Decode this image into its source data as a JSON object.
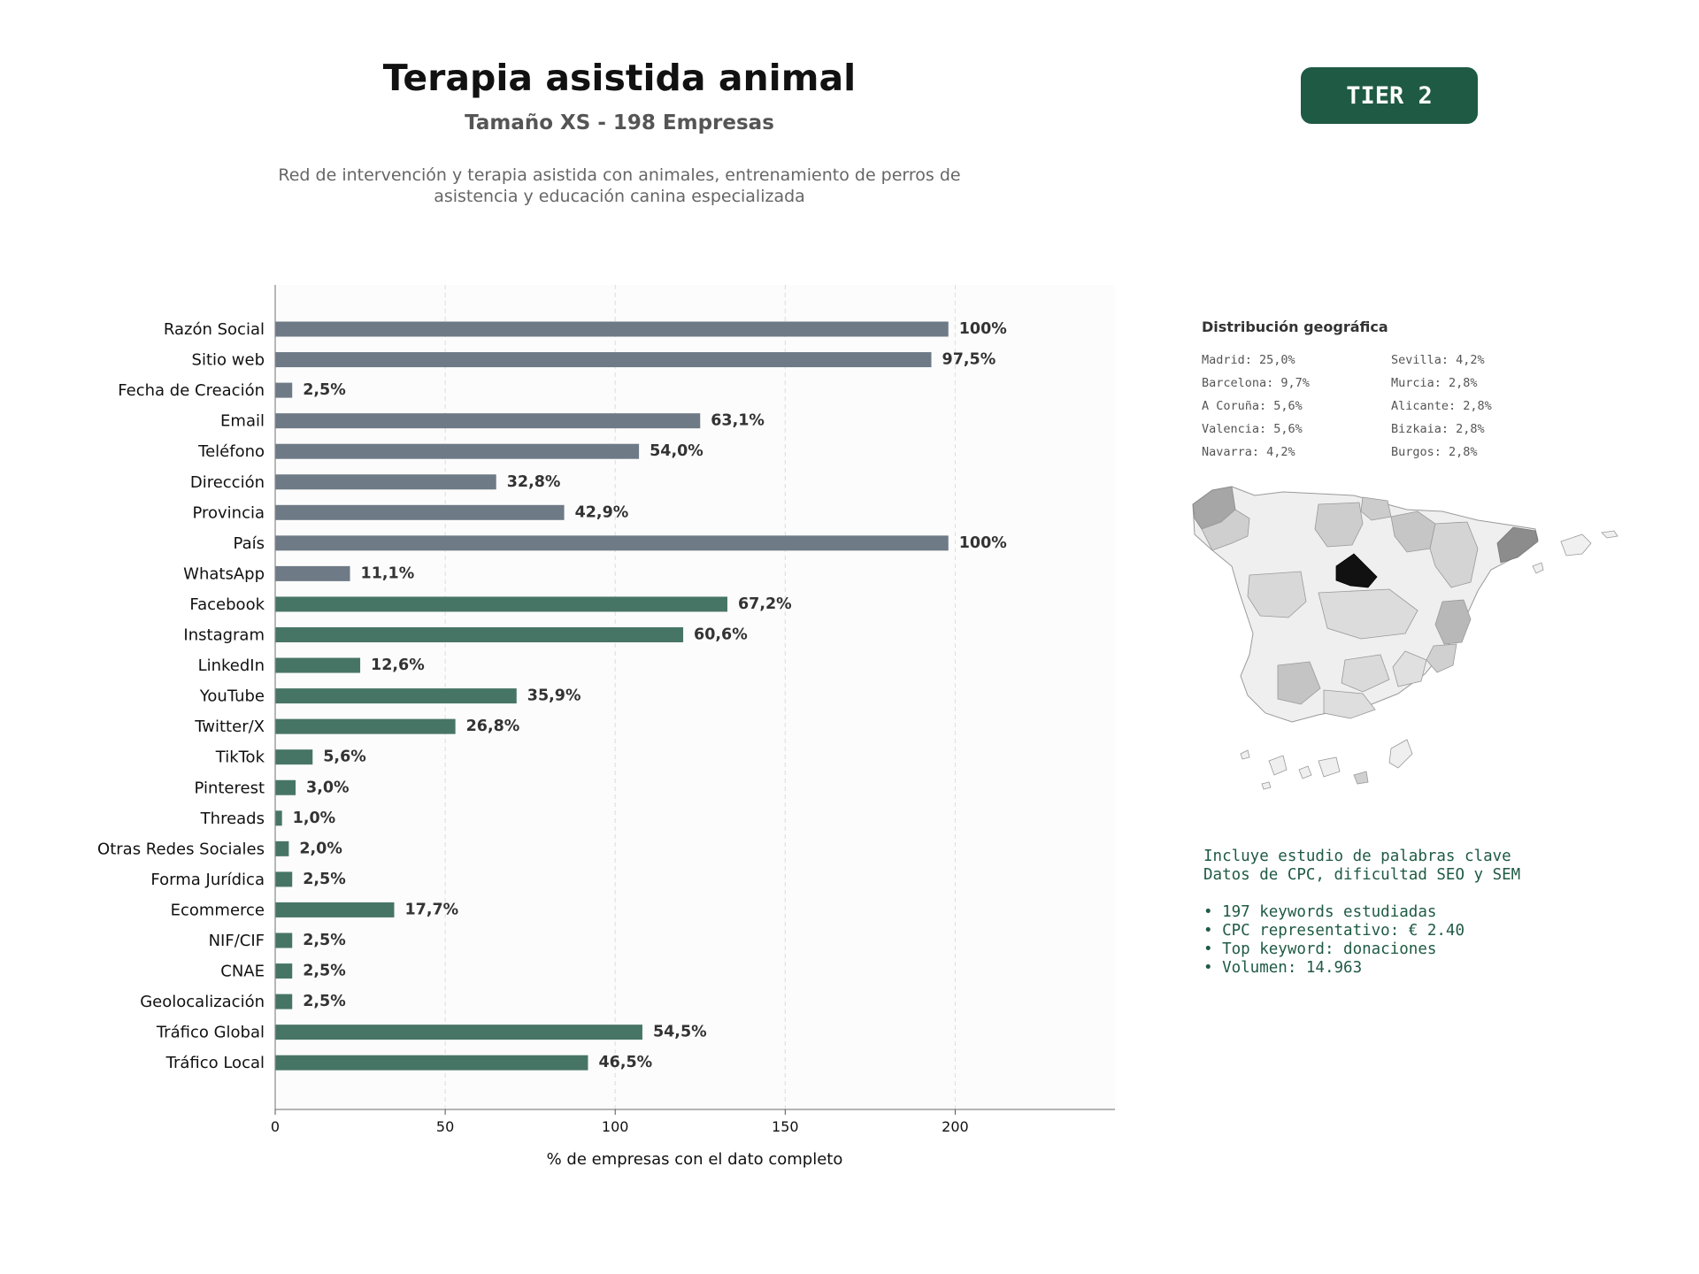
{
  "header": {
    "title": "Terapia asistida animal",
    "subtitle": "Tamaño XS - 198 Empresas",
    "description": "Red de intervención y terapia asistida con animales, entrenamiento de perros de asistencia y educación canina especializada",
    "tier": "TIER 2"
  },
  "colors": {
    "contact_bar": "#6e7a86",
    "social_bar": "#477565",
    "accent": "#1f5a44",
    "madrid": "#111111"
  },
  "chart_data": {
    "type": "bar",
    "orientation": "horizontal",
    "categories": [
      "Razón Social",
      "Sitio web",
      "Fecha de Creación",
      "Email",
      "Teléfono",
      "Dirección",
      "Provincia",
      "País",
      "WhatsApp",
      "Facebook",
      "Instagram",
      "LinkedIn",
      "YouTube",
      "Twitter/X",
      "TikTok",
      "Pinterest",
      "Threads",
      "Otras Redes Sociales",
      "Forma Jurídica",
      "Ecommerce",
      "NIF/CIF",
      "CNAE",
      "Geolocalización",
      "Tráfico Global",
      "Tráfico Local"
    ],
    "values": [
      198,
      193,
      5,
      125,
      107,
      65,
      85,
      198,
      22,
      133,
      120,
      25,
      71,
      53,
      11,
      6,
      2,
      4,
      5,
      35,
      5,
      5,
      5,
      108,
      92
    ],
    "labels": [
      "100%",
      "97,5%",
      "2,5%",
      "63,1%",
      "54,0%",
      "32,8%",
      "42,9%",
      "100%",
      "11,1%",
      "67,2%",
      "60,6%",
      "12,6%",
      "35,9%",
      "26,8%",
      "5,6%",
      "3,0%",
      "1,0%",
      "2,0%",
      "2,5%",
      "17,7%",
      "2,5%",
      "2,5%",
      "2,5%",
      "54,5%",
      "46,5%"
    ],
    "groups": [
      "contact",
      "contact",
      "contact",
      "contact",
      "contact",
      "contact",
      "contact",
      "contact",
      "contact",
      "social",
      "social",
      "social",
      "social",
      "social",
      "social",
      "social",
      "social",
      "social",
      "social",
      "social",
      "social",
      "social",
      "social",
      "social",
      "social"
    ],
    "xlabel": "% de empresas con el dato completo",
    "ylabel": "",
    "xlim": [
      0,
      247
    ],
    "xticks": [
      0,
      50,
      100,
      150,
      200
    ],
    "grid": "vertical dashed"
  },
  "geo": {
    "title": "Distribución geográfica",
    "items": [
      "Madrid: 25,0%",
      "Sevilla: 4,2%",
      "Barcelona: 9,7%",
      "Murcia: 2,8%",
      "A Coruña: 5,6%",
      "Alicante: 2,8%",
      "Valencia: 5,6%",
      "Bizkaia: 2,8%",
      "Navarra: 4,2%",
      "Burgos: 2,8%"
    ]
  },
  "keywords": {
    "line1": "Incluye estudio de palabras clave",
    "line2": "Datos de CPC, dificultad SEO y SEM",
    "bullets": [
      "• 197 keywords estudiadas",
      "• CPC representativo: € 2.40",
      "• Top keyword: donaciones",
      "• Volumen: 14.963"
    ]
  }
}
